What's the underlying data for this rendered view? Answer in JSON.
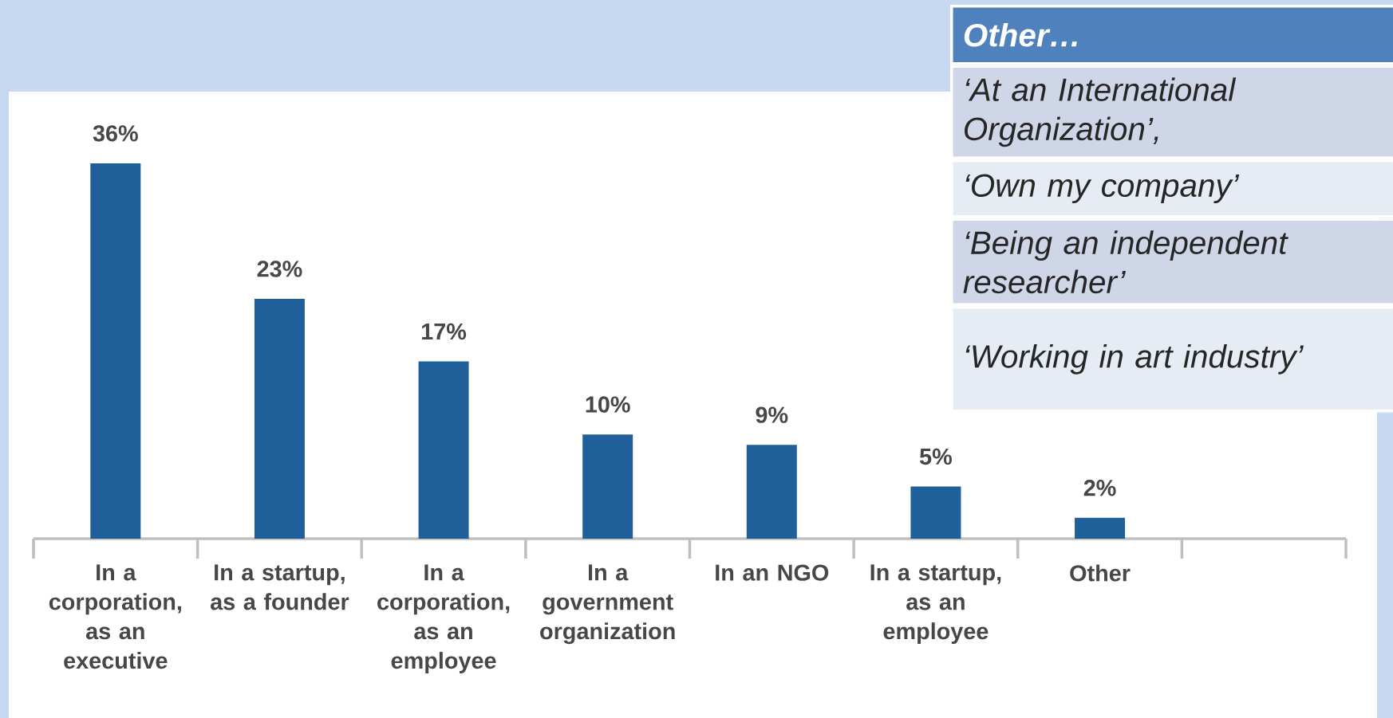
{
  "chart_data": {
    "type": "bar",
    "categories": [
      "In a corporation, as an executive",
      "In a startup, as a founder",
      "In a corporation, as an employee",
      "In a government organization",
      "In an NGO",
      "In a startup, as an employee",
      "Other",
      null
    ],
    "values": [
      36,
      23,
      17,
      10,
      9,
      5,
      2,
      null
    ],
    "value_labels": [
      "36%",
      "23%",
      "17%",
      "10%",
      "9%",
      "5%",
      "2%",
      null
    ],
    "color": "#1f5f9a",
    "annotations": [
      "Other…",
      "‘At an International Organization’,",
      "‘Own my company’",
      "‘Being an independent researcher’",
      "‘Working in art industry’"
    ]
  }
}
